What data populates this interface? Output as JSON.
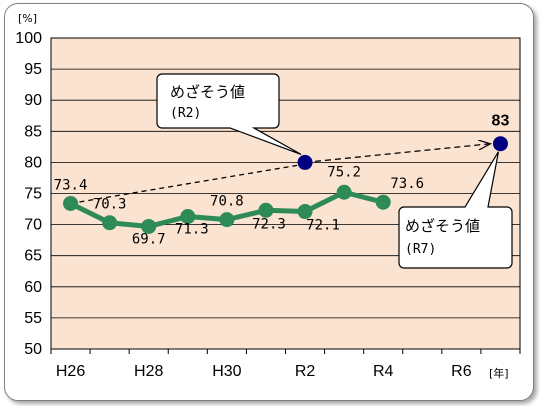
{
  "chart_data": {
    "type": "line",
    "title": "",
    "xlabel": "",
    "ylabel": "",
    "y_unit": "[%]",
    "x_unit": "[年]",
    "ylim": [
      50,
      100
    ],
    "yticks": [
      50,
      55,
      60,
      65,
      70,
      75,
      80,
      85,
      90,
      95,
      100
    ],
    "x_tick_labels": [
      "H26",
      "H28",
      "H30",
      "R2",
      "R4",
      "R6"
    ],
    "series": [
      {
        "x": [
          "H26",
          "H27",
          "H28",
          "H29",
          "H30",
          "R1",
          "R2",
          "R3",
          "R4"
        ],
        "values": [
          73.4,
          70.3,
          69.7,
          71.3,
          70.8,
          72.3,
          72.1,
          75.2,
          73.6
        ],
        "labels": [
          "73.4",
          "70.3",
          "69.7",
          "71.3",
          "70.8",
          "72.3",
          "72.1",
          "75.2",
          "73.6"
        ]
      }
    ],
    "targets": [
      {
        "x": "R2",
        "value": 80,
        "callout": "めざそう値",
        "callout_sub": "(R2)"
      },
      {
        "x": "R7",
        "value": 83,
        "label": "83",
        "callout": "めざそう値",
        "callout_sub": "(R7)"
      }
    ],
    "grid": true,
    "colors": {
      "plot_bg": "#fbe3d1",
      "series": "#2e8b57",
      "target": "#000080"
    }
  }
}
